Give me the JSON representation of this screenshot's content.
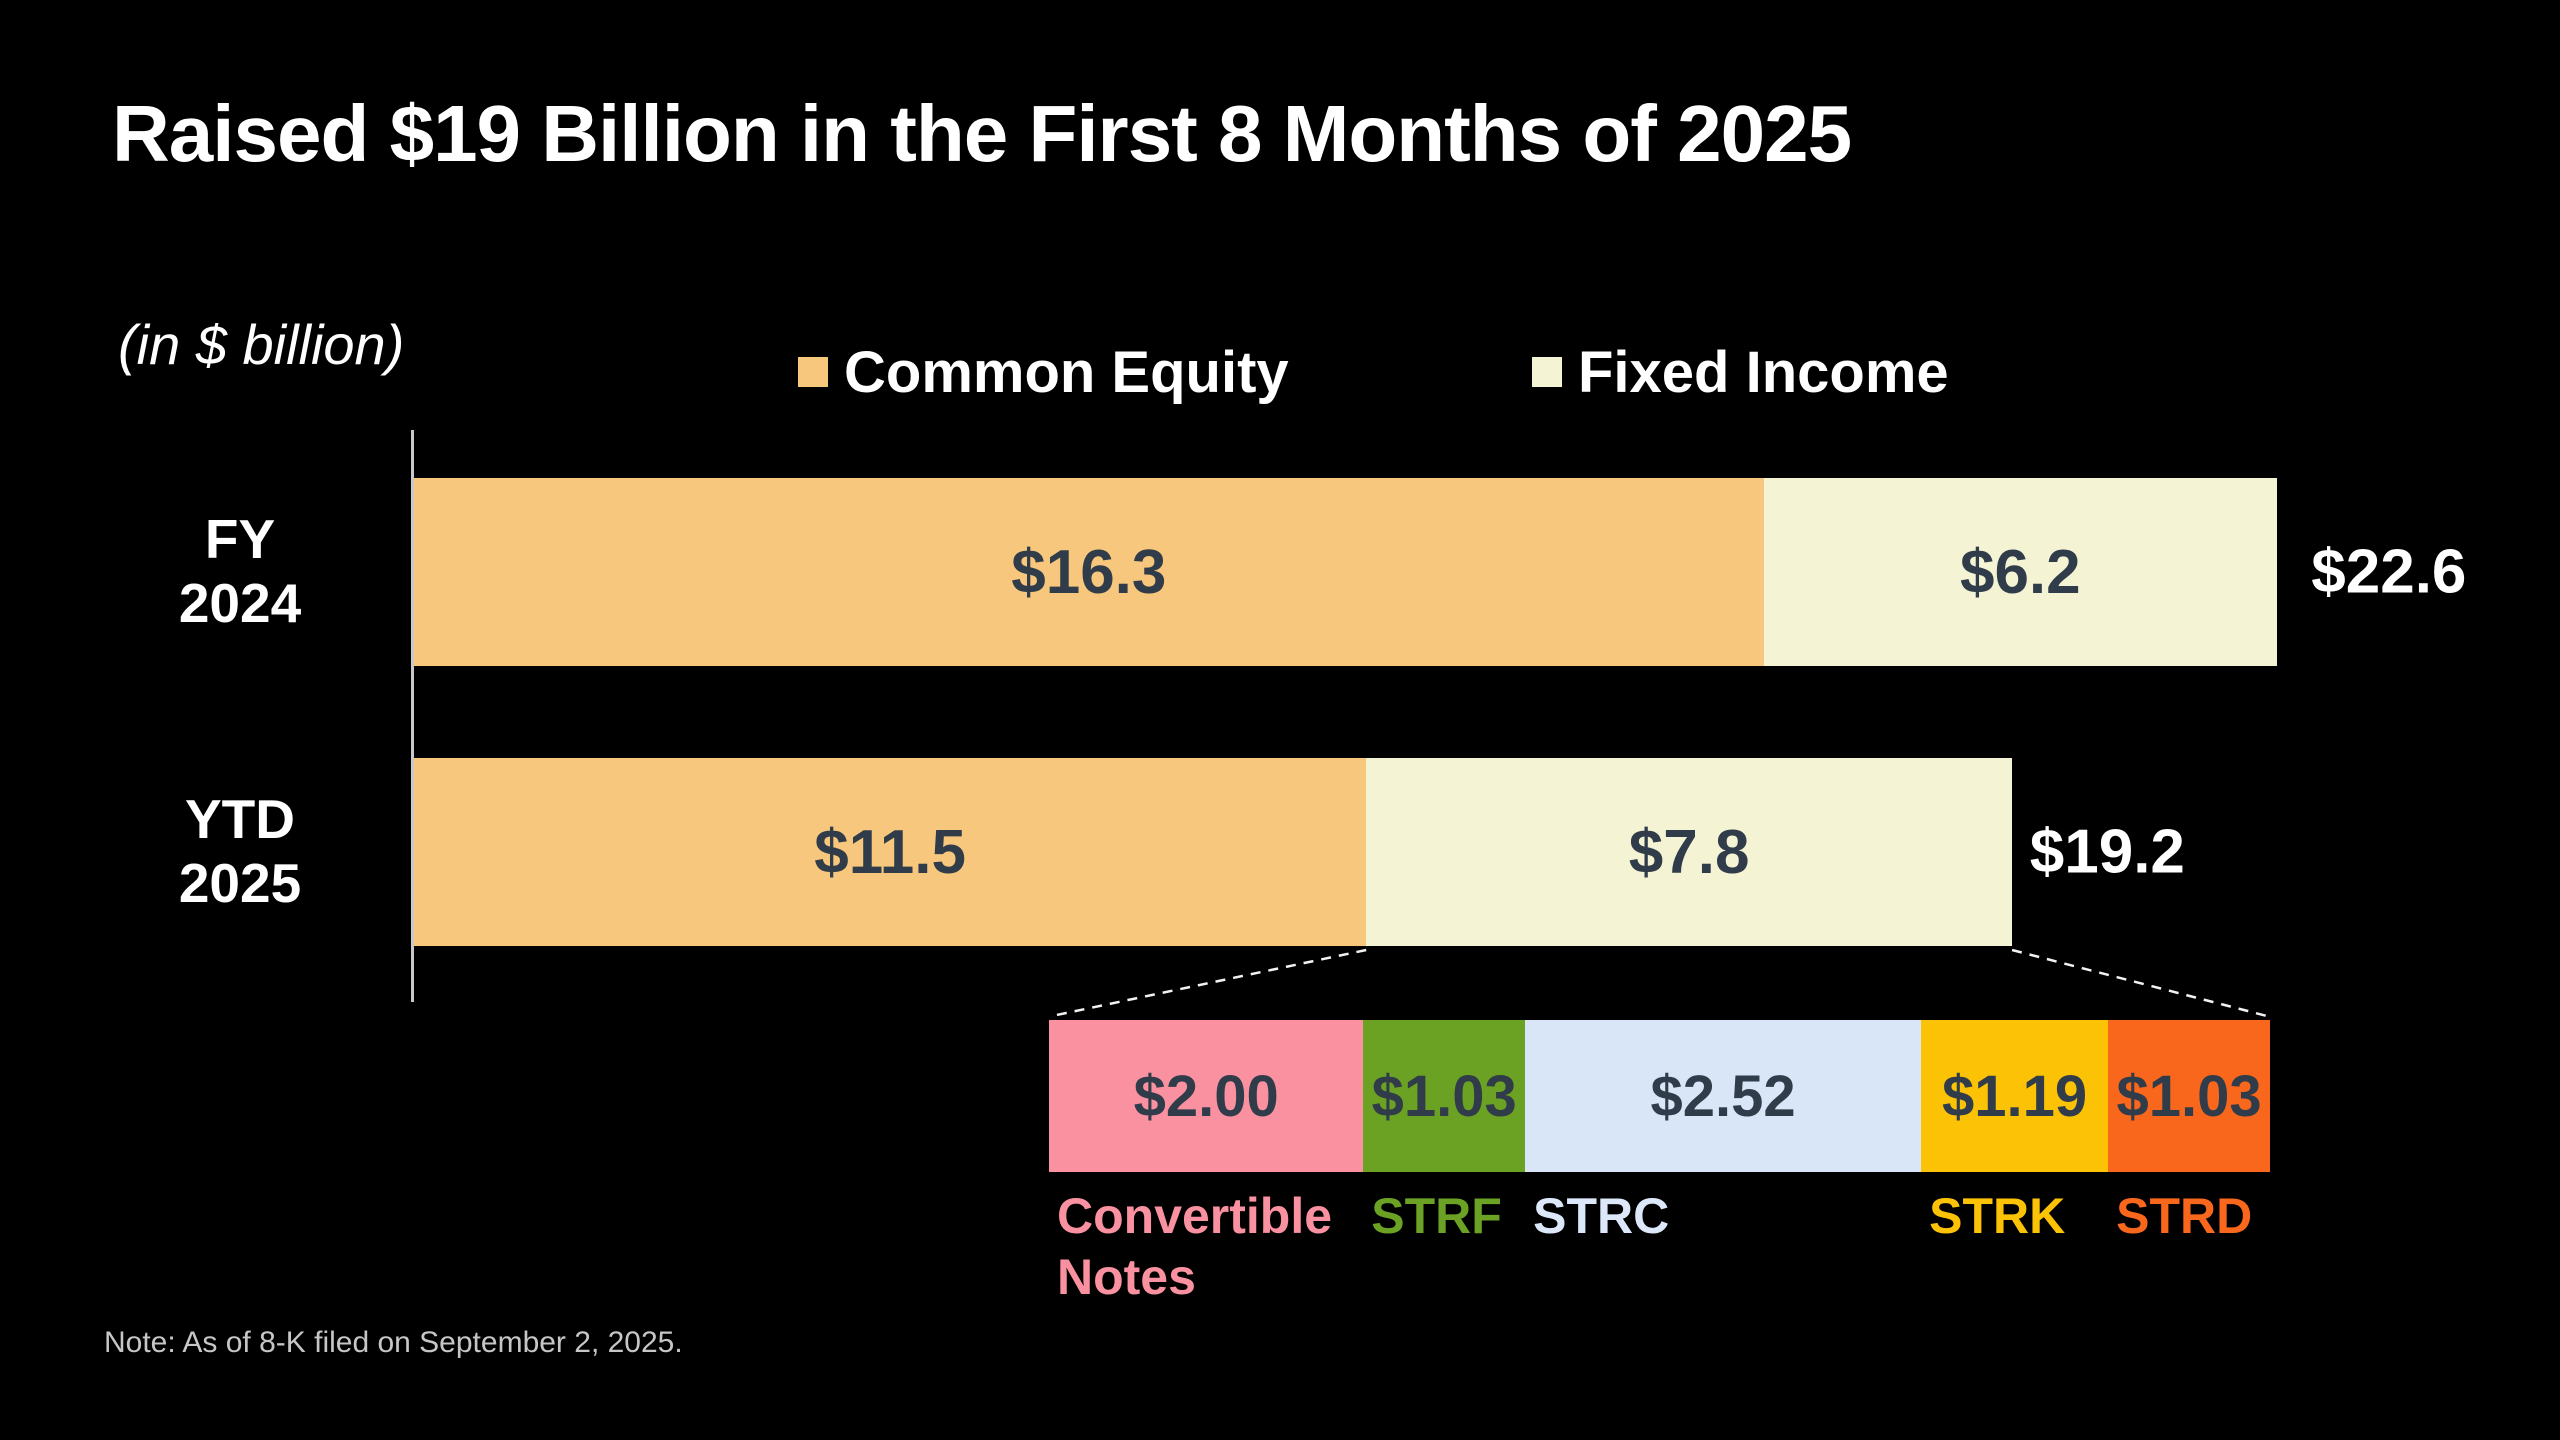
{
  "title": "Raised $19 Billion in the First 8 Months of 2025",
  "footnote": "Note: As of 8-K filed on September 2, 2025.",
  "background_color": "#000000",
  "chart_data": {
    "type": "bar",
    "orientation": "horizontal-stacked",
    "unit_label": "(in $ billion)",
    "legend_position": "top",
    "categories": [
      "FY 2024",
      "YTD 2025"
    ],
    "series": [
      {
        "name": "Common Equity",
        "color": "#F6C77C",
        "values": [
          16.3,
          11.5
        ],
        "value_labels": [
          "$16.3",
          "$11.5"
        ]
      },
      {
        "name": "Fixed Income",
        "color": "#F4F3D4",
        "values": [
          6.2,
          7.8
        ],
        "value_labels": [
          "$6.2",
          "$7.8"
        ]
      }
    ],
    "totals": {
      "values": [
        22.6,
        19.2
      ],
      "labels": [
        "$22.6",
        "$19.2"
      ]
    },
    "value_text_color": "#303C49",
    "breakdown": {
      "segments": [
        {
          "label": "Convertible Notes",
          "value": 2.0,
          "value_label": "$2.00",
          "color": "#FA91A0"
        },
        {
          "label": "STRF",
          "value": 1.03,
          "value_label": "$1.03",
          "color": "#6BA224"
        },
        {
          "label": "STRC",
          "value": 2.52,
          "value_label": "$2.52",
          "color": "#D9E6F8",
          "label_color": "#DCE8FA"
        },
        {
          "label": "STRK",
          "value": 1.19,
          "value_label": "$1.19",
          "color": "#FCC306"
        },
        {
          "label": "STRD",
          "value": 1.03,
          "value_label": "$1.03",
          "color": "#F8671C"
        }
      ]
    }
  }
}
